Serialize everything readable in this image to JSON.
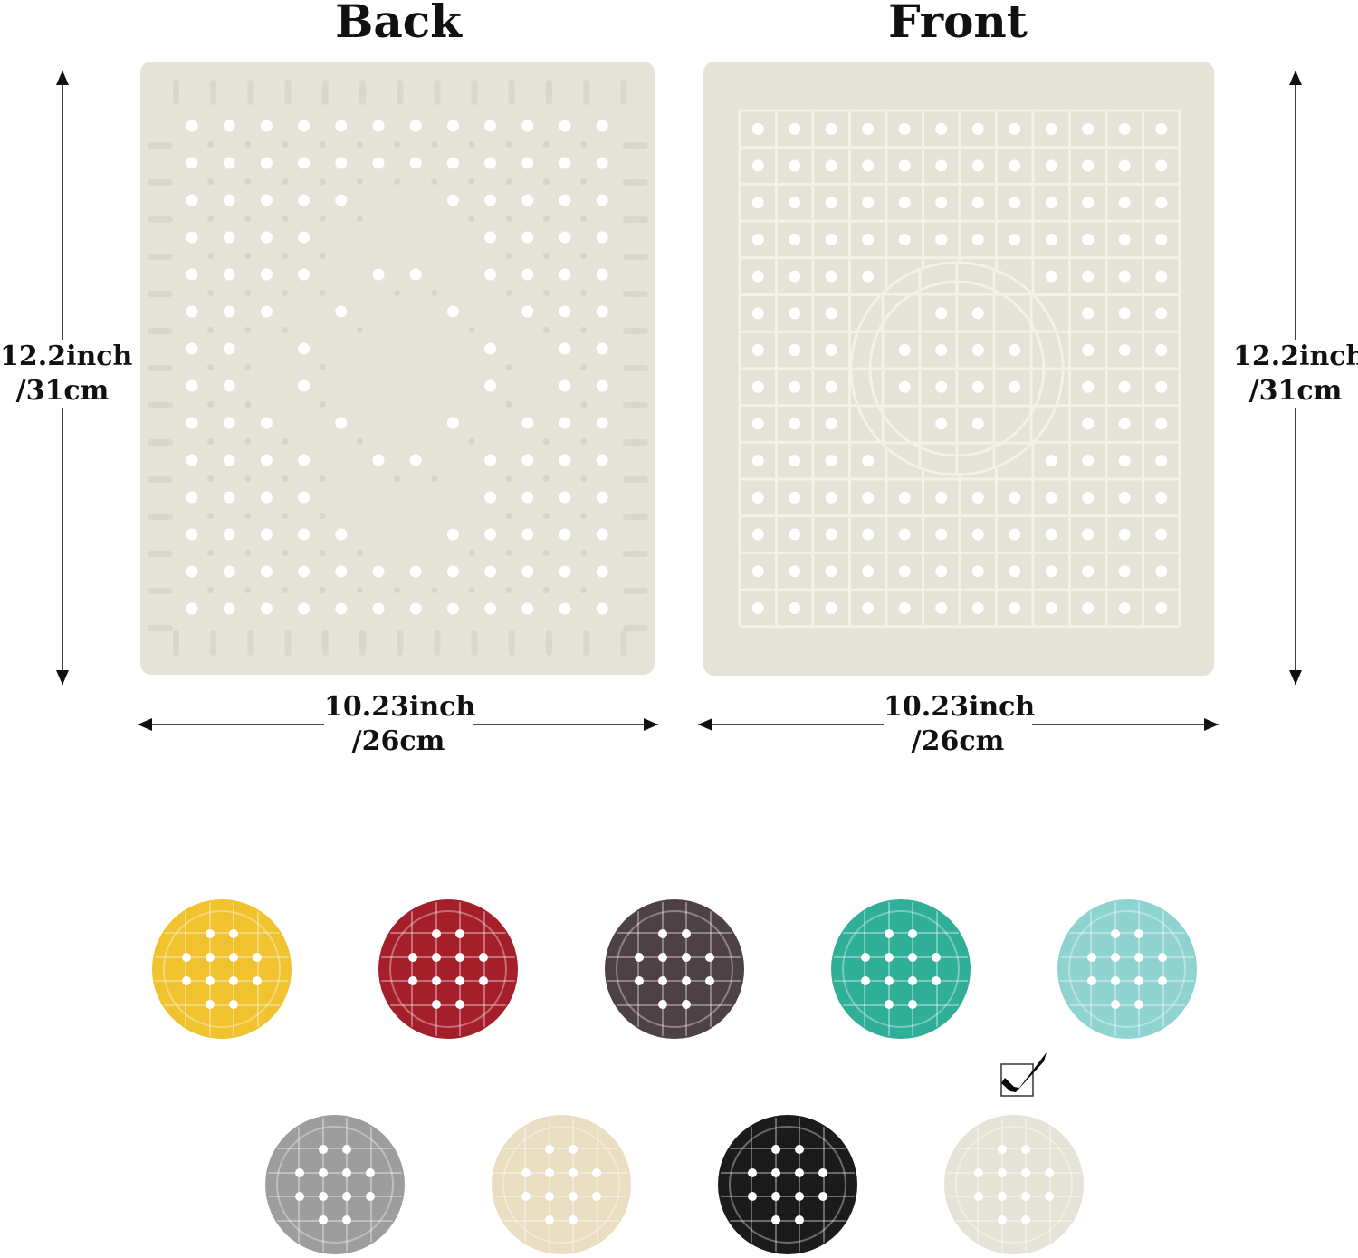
{
  "panels": {
    "back": {
      "title": "Back"
    },
    "front": {
      "title": "Front"
    }
  },
  "dimensions": {
    "height_in": "12.2inch",
    "height_cm": "/31cm",
    "width_in": "10.23inch",
    "width_cm": "/26cm"
  },
  "mat_color": "#e5e3d7",
  "color_options": [
    {
      "color": "#f0c22e",
      "selected": false
    },
    {
      "color": "#a51f2b",
      "selected": false
    },
    {
      "color": "#4e4146",
      "selected": false
    },
    {
      "color": "#2fae98",
      "selected": false
    },
    {
      "color": "#8fd3d1",
      "selected": false
    },
    {
      "color": "#9d9d9d",
      "selected": false
    },
    {
      "color": "#e9ddc2",
      "selected": false
    },
    {
      "color": "#1b1b1b",
      "selected": false
    },
    {
      "color": "#e5e3d7",
      "selected": true
    }
  ],
  "selected_icon": "checkbox-checked-icon"
}
